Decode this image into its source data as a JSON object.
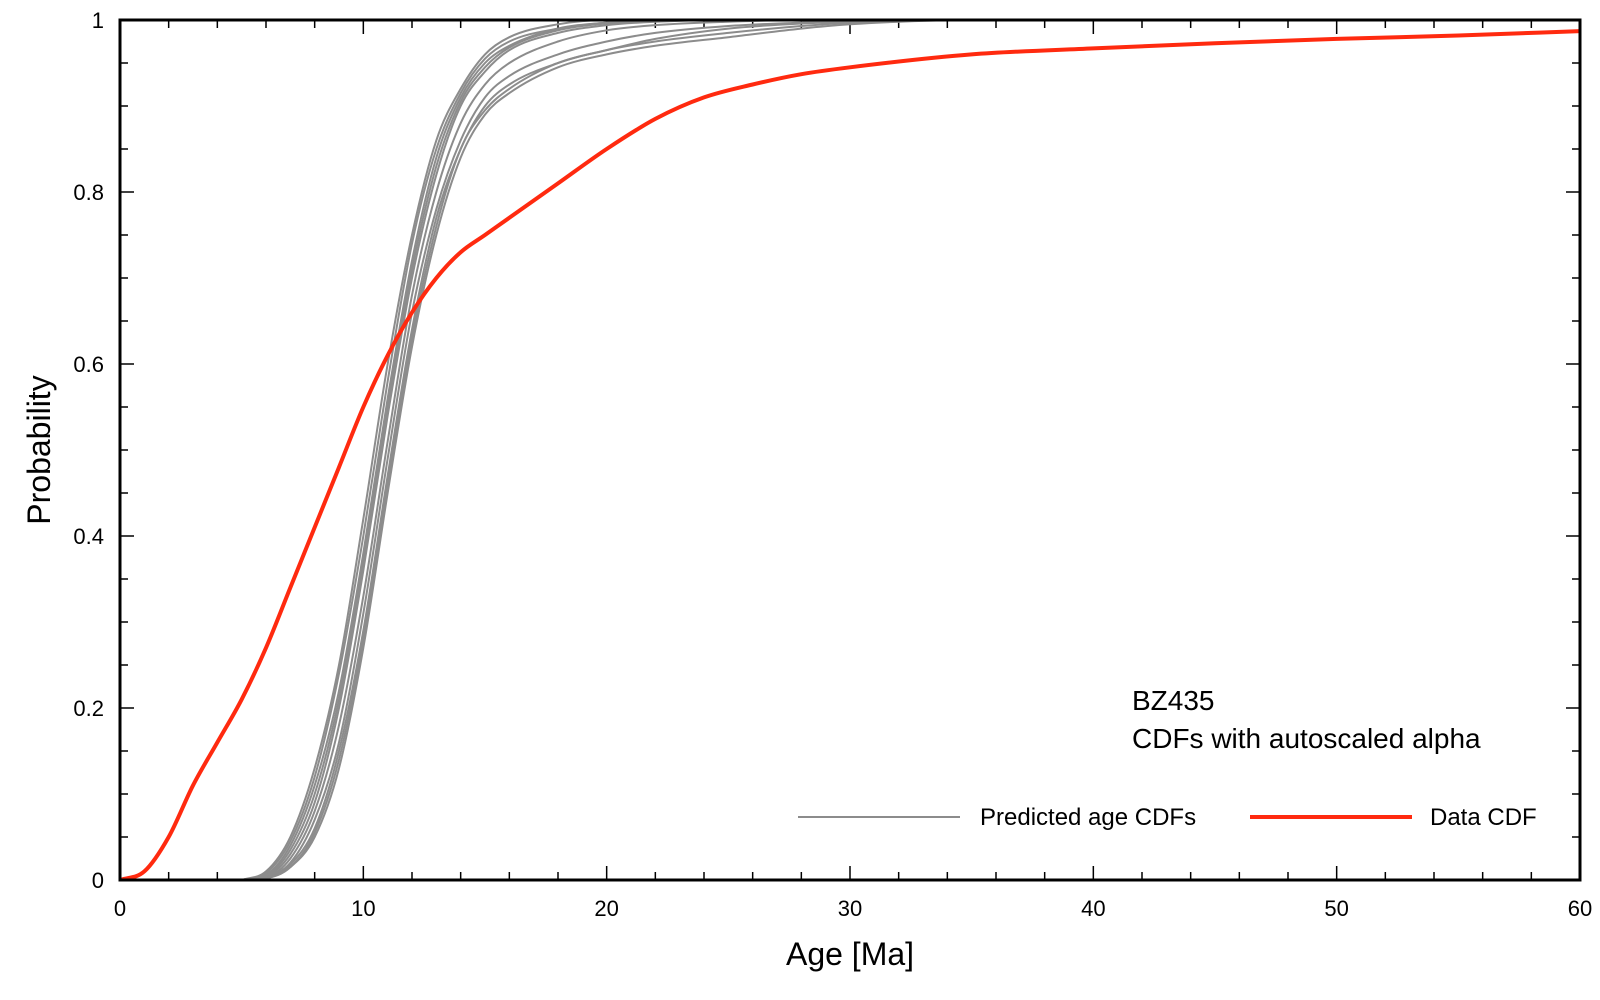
{
  "chart_data": {
    "type": "line",
    "xlabel": "Age [Ma]",
    "ylabel": "Probability",
    "xlim": [
      0,
      60
    ],
    "ylim": [
      0,
      1
    ],
    "xticks": [
      0,
      10,
      20,
      30,
      40,
      50,
      60
    ],
    "xtick_labels": [
      "0",
      "10",
      "20",
      "30",
      "40",
      "50",
      "60"
    ],
    "yticks": [
      0,
      0.2,
      0.4,
      0.6,
      0.8,
      1
    ],
    "ytick_labels": [
      "0",
      "0.2",
      "0.4",
      "0.6",
      "0.8",
      "1"
    ],
    "x_minor_step": 2,
    "y_minor_step": 0.05,
    "grid": false,
    "annotations": [
      "BZ435",
      "CDFs with autoscaled alpha"
    ],
    "legend": {
      "placement": "bottom-right",
      "entries": [
        {
          "label": "Predicted age CDFs",
          "color": "#8c8c8c"
        },
        {
          "label": "Data CDF",
          "color": "#ff2a0f"
        }
      ]
    },
    "series": [
      {
        "group": "Predicted age CDFs",
        "color": "#8c8c8c",
        "x": [
          5,
          6,
          7,
          8,
          9,
          10,
          11,
          12,
          13,
          14,
          15,
          16,
          18,
          20,
          22,
          25,
          28,
          30,
          33,
          35,
          40,
          60
        ],
        "y": [
          0,
          0.01,
          0.05,
          0.13,
          0.25,
          0.42,
          0.6,
          0.75,
          0.86,
          0.92,
          0.96,
          0.98,
          0.995,
          1,
          1,
          1,
          1,
          1,
          1,
          1,
          1,
          1
        ]
      },
      {
        "group": "Predicted age CDFs",
        "color": "#8c8c8c",
        "x": [
          5,
          6,
          7,
          8,
          9,
          10,
          11,
          12,
          13,
          14,
          15,
          16,
          18,
          20,
          22,
          25,
          28,
          30,
          33,
          35,
          40,
          60
        ],
        "y": [
          0,
          0.006,
          0.04,
          0.11,
          0.22,
          0.38,
          0.56,
          0.72,
          0.84,
          0.91,
          0.95,
          0.97,
          0.99,
          0.997,
          1,
          1,
          1,
          1,
          1,
          1,
          1,
          1
        ]
      },
      {
        "group": "Predicted age CDFs",
        "color": "#8c8c8c",
        "x": [
          5,
          6,
          7,
          8,
          9,
          10,
          11,
          12,
          13,
          14,
          15,
          16,
          18,
          20,
          22,
          25,
          28,
          30,
          33,
          35,
          40,
          60
        ],
        "y": [
          0,
          0.004,
          0.03,
          0.09,
          0.2,
          0.36,
          0.54,
          0.7,
          0.82,
          0.9,
          0.94,
          0.965,
          0.985,
          0.994,
          0.998,
          1,
          1,
          1,
          1,
          1,
          1,
          1
        ]
      },
      {
        "group": "Predicted age CDFs",
        "color": "#8c8c8c",
        "x": [
          5,
          6,
          7,
          8,
          9,
          10,
          11,
          12,
          13,
          14,
          15,
          16,
          18,
          20,
          22,
          25,
          28,
          30,
          33,
          35,
          40,
          60
        ],
        "y": [
          0,
          0.003,
          0.025,
          0.08,
          0.18,
          0.33,
          0.51,
          0.68,
          0.8,
          0.88,
          0.925,
          0.95,
          0.975,
          0.988,
          0.994,
          0.998,
          1,
          1,
          1,
          1,
          1,
          1
        ]
      },
      {
        "group": "Predicted age CDFs",
        "color": "#8c8c8c",
        "x": [
          5,
          6,
          7,
          8,
          9,
          10,
          11,
          12,
          13,
          14,
          15,
          16,
          18,
          20,
          22,
          25,
          28,
          30,
          33,
          35,
          40,
          60
        ],
        "y": [
          0,
          0.003,
          0.02,
          0.07,
          0.16,
          0.31,
          0.49,
          0.66,
          0.78,
          0.86,
          0.91,
          0.935,
          0.96,
          0.975,
          0.985,
          0.993,
          0.997,
          0.999,
          1,
          1,
          1,
          1
        ]
      },
      {
        "group": "Predicted age CDFs",
        "color": "#8c8c8c",
        "x": [
          5,
          6,
          7,
          8,
          9,
          10,
          11,
          12,
          13,
          14,
          15,
          16,
          18,
          20,
          22,
          25,
          28,
          30,
          33,
          35,
          40,
          60
        ],
        "y": [
          0,
          0.002,
          0.018,
          0.06,
          0.15,
          0.29,
          0.47,
          0.64,
          0.77,
          0.85,
          0.9,
          0.925,
          0.95,
          0.965,
          0.975,
          0.985,
          0.993,
          0.997,
          1,
          1,
          1,
          1
        ]
      },
      {
        "group": "Predicted age CDFs",
        "color": "#8c8c8c",
        "x": [
          5,
          6,
          7,
          8,
          9,
          10,
          11,
          12,
          13,
          14,
          15,
          16,
          18,
          20,
          22,
          25,
          28,
          30,
          33,
          35,
          40,
          60
        ],
        "y": [
          0,
          0.002,
          0.015,
          0.05,
          0.13,
          0.27,
          0.45,
          0.62,
          0.75,
          0.84,
          0.89,
          0.915,
          0.945,
          0.96,
          0.97,
          0.98,
          0.99,
          0.995,
          0.999,
          1,
          1,
          1
        ]
      },
      {
        "group": "Predicted age CDFs",
        "color": "#8c8c8c",
        "x": [
          5,
          6,
          7,
          8,
          9,
          10,
          11,
          12,
          13,
          14,
          15,
          16,
          18,
          20,
          22,
          25,
          28,
          30,
          33,
          35,
          40,
          60
        ],
        "y": [
          0,
          0.005,
          0.035,
          0.1,
          0.21,
          0.37,
          0.55,
          0.71,
          0.83,
          0.905,
          0.945,
          0.968,
          0.988,
          0.996,
          0.999,
          1,
          1,
          1,
          1,
          1,
          1,
          1
        ]
      },
      {
        "group": "Predicted age CDFs",
        "color": "#8c8c8c",
        "x": [
          5,
          6,
          7,
          8,
          9,
          10,
          11,
          12,
          13,
          14,
          15,
          16,
          18,
          20,
          22,
          25,
          28,
          30,
          33,
          35,
          40,
          60
        ],
        "y": [
          0,
          0.008,
          0.045,
          0.12,
          0.24,
          0.4,
          0.58,
          0.74,
          0.85,
          0.915,
          0.955,
          0.975,
          0.99,
          0.997,
          1,
          1,
          1,
          1,
          1,
          1,
          1,
          1
        ]
      },
      {
        "group": "Predicted age CDFs",
        "color": "#8c8c8c",
        "x": [
          5,
          6,
          7,
          8,
          9,
          10,
          11,
          12,
          13,
          14,
          15,
          16,
          18,
          20,
          22,
          25,
          28,
          30,
          33,
          35,
          40,
          60
        ],
        "y": [
          0,
          0.002,
          0.015,
          0.055,
          0.14,
          0.28,
          0.46,
          0.63,
          0.76,
          0.85,
          0.895,
          0.92,
          0.95,
          0.965,
          0.978,
          0.99,
          0.996,
          0.998,
          1,
          1,
          1,
          1
        ]
      },
      {
        "name": "Data CDF",
        "color": "#ff2a0f",
        "x": [
          0,
          1,
          2,
          3,
          4,
          5,
          6,
          7,
          8,
          9,
          10,
          11,
          12,
          13,
          14,
          15,
          16,
          18,
          20,
          22,
          24,
          26,
          28,
          30,
          35,
          40,
          45,
          50,
          55,
          60
        ],
        "y": [
          0,
          0.01,
          0.05,
          0.11,
          0.16,
          0.21,
          0.27,
          0.34,
          0.41,
          0.48,
          0.55,
          0.61,
          0.66,
          0.7,
          0.73,
          0.75,
          0.77,
          0.81,
          0.85,
          0.885,
          0.91,
          0.925,
          0.937,
          0.945,
          0.96,
          0.967,
          0.973,
          0.978,
          0.982,
          0.987
        ]
      }
    ]
  }
}
